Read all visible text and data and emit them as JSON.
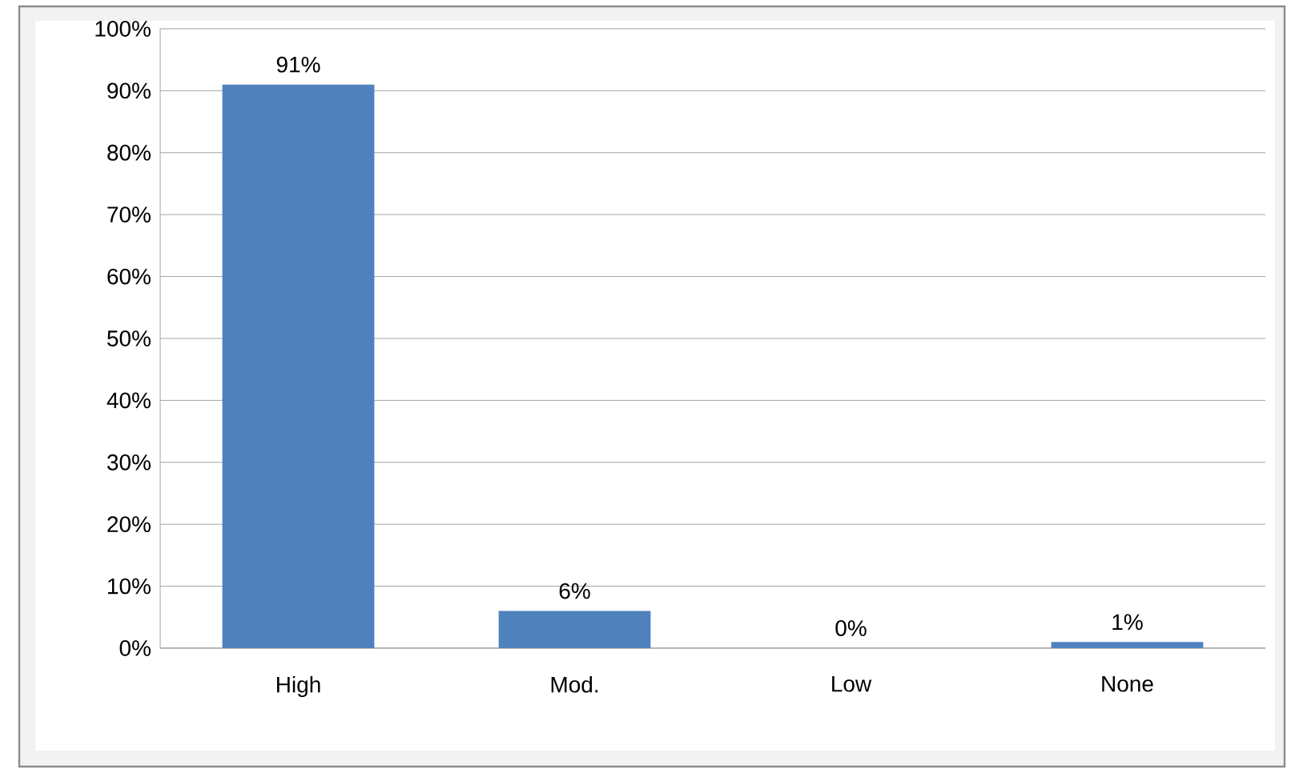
{
  "chart_data": {
    "type": "bar",
    "categories": [
      "High",
      "Mod.",
      "Low",
      "None"
    ],
    "values": [
      91,
      6,
      0,
      1
    ],
    "value_labels": [
      "91%",
      "6%",
      "0%",
      "1%"
    ],
    "color": "#4f81bd",
    "ylim": [
      0,
      100
    ],
    "yticks": [
      {
        "value": 0,
        "label": "0%"
      },
      {
        "value": 10,
        "label": "10%"
      },
      {
        "value": 20,
        "label": "20%"
      },
      {
        "value": 30,
        "label": "30%"
      },
      {
        "value": 40,
        "label": "40%"
      },
      {
        "value": 50,
        "label": "50%"
      },
      {
        "value": 60,
        "label": "60%"
      },
      {
        "value": 70,
        "label": "70%"
      },
      {
        "value": 80,
        "label": "80%"
      },
      {
        "value": 90,
        "label": "90%"
      },
      {
        "value": 100,
        "label": "100%"
      }
    ],
    "grid": "y"
  }
}
